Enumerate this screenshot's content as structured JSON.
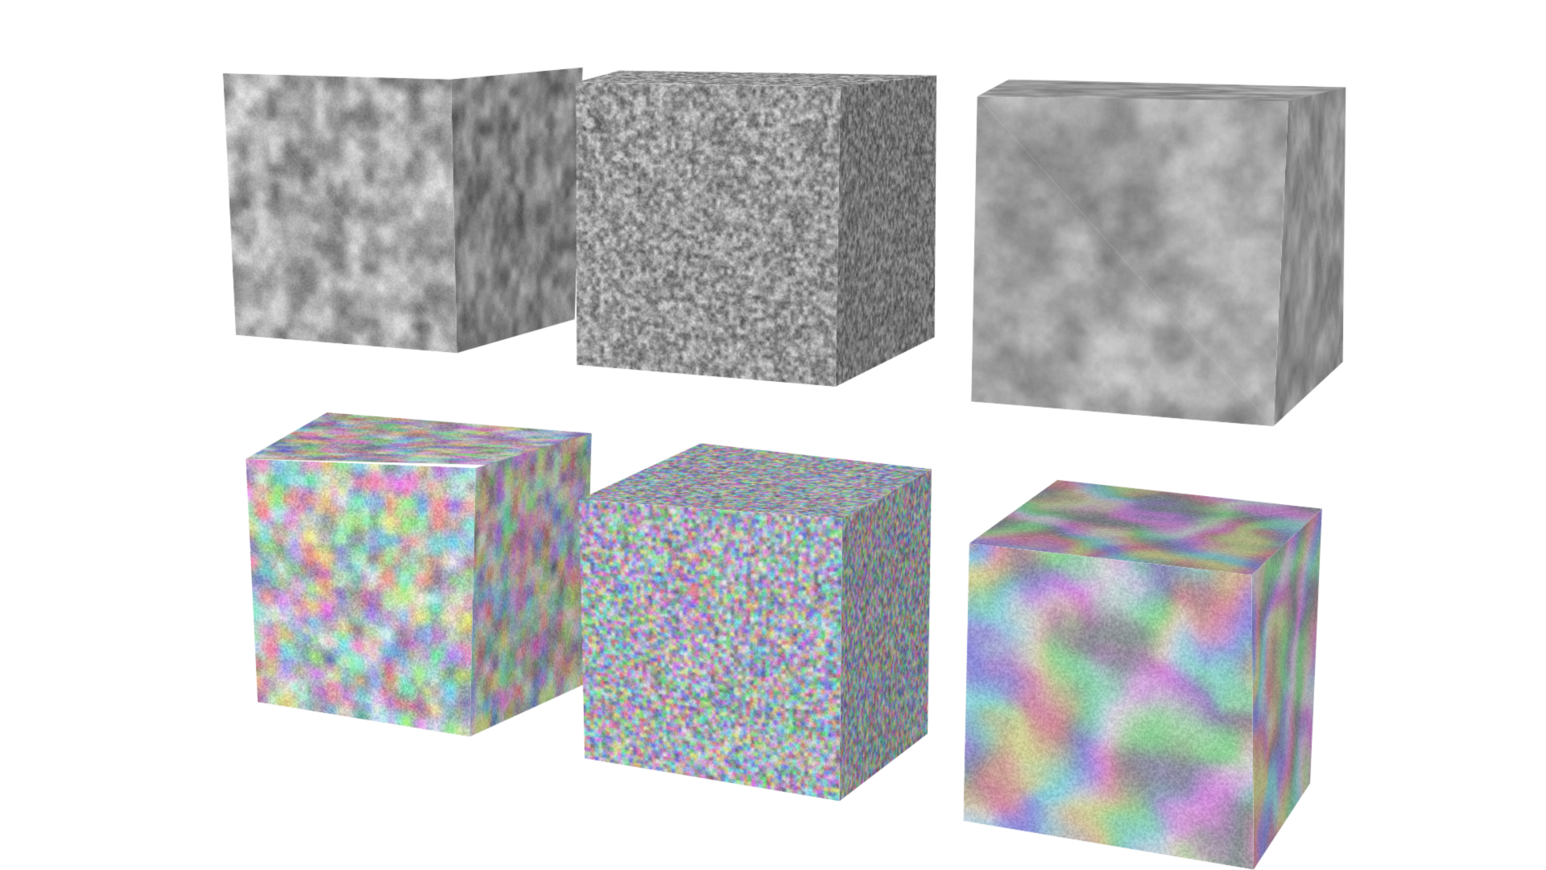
{
  "scene": {
    "background": "#ffffff",
    "cubes": [
      {
        "row": "grayscale",
        "pattern": "blocky-value-noise",
        "palette": "gray",
        "shade": {
          "top": 0.82,
          "front": 0.95,
          "side": 0.72
        }
      },
      {
        "row": "grayscale",
        "pattern": "fine-speckle-noise",
        "palette": "gray",
        "shade": {
          "top": 0.9,
          "front": 0.92,
          "side": 0.7
        }
      },
      {
        "row": "grayscale",
        "pattern": "soft-fractal-noise",
        "palette": "gray",
        "shade": {
          "top": 0.88,
          "front": 0.93,
          "side": 0.8
        }
      },
      {
        "row": "color",
        "pattern": "blocky-value-noise",
        "palette": "pastel-rgb",
        "shade": {
          "top": 0.85,
          "front": 0.95,
          "side": 0.75
        }
      },
      {
        "row": "color",
        "pattern": "fine-speckle-noise",
        "palette": "pastel-rgb",
        "shade": {
          "top": 0.85,
          "front": 0.93,
          "side": 0.72
        }
      },
      {
        "row": "color",
        "pattern": "swirl-turbulence",
        "palette": "pastel-rgb",
        "shade": {
          "top": 0.8,
          "front": 0.95,
          "side": 0.78
        }
      }
    ]
  }
}
